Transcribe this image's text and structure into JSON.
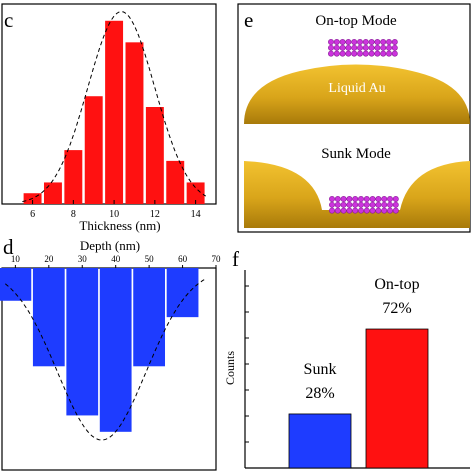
{
  "chart_data": [
    {
      "panel_label": "c",
      "type": "bar",
      "x": [
        6,
        7,
        8,
        9,
        10,
        11,
        12,
        13,
        14
      ],
      "values": [
        1,
        2,
        5,
        10,
        17,
        15,
        9,
        4,
        2
      ],
      "xlabel": "Thickness (nm)",
      "xticks": [
        "6",
        "8",
        "10",
        "12",
        "14"
      ],
      "xlim": [
        4.5,
        15
      ],
      "ylim": [
        0,
        18
      ],
      "bar_color": "#ff1111",
      "fit": "gaussian (dashed)"
    },
    {
      "panel_label": "d",
      "type": "bar",
      "x": [
        10,
        20,
        30,
        40,
        50,
        60
      ],
      "values": [
        2,
        6,
        9,
        10,
        6,
        3
      ],
      "xlabel": "Depth (nm)",
      "xticks": [
        "10",
        "20",
        "30",
        "40",
        "50",
        "60",
        "70"
      ],
      "xlim": [
        6,
        70
      ],
      "ylim": [
        0,
        10.5
      ],
      "orientation": "downward",
      "bar_color": "#1e3cff",
      "fit": "gaussian (dashed)"
    },
    {
      "panel_label": "f",
      "type": "bar",
      "categories": [
        "Sunk",
        "On-top"
      ],
      "values": [
        28,
        72
      ],
      "value_labels": [
        "28%",
        "72%"
      ],
      "ylabel": "Counts",
      "ylim": [
        0,
        100
      ],
      "colors": [
        "#1e3cff",
        "#ff1111"
      ]
    }
  ],
  "diagram": {
    "panel_label": "e",
    "on_top_title": "On-top Mode",
    "liquid_label": "Liquid Au",
    "sunk_title": "Sunk Mode",
    "gold_color": "#d4a017",
    "particle_color": "#cc33dd"
  }
}
